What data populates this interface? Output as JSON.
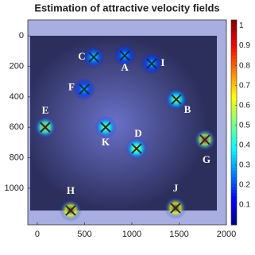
{
  "chart_data": {
    "type": "heatmap",
    "title": "Estimation of attractive velocity fields",
    "xlim": [
      -100,
      2000
    ],
    "ylim": [
      -105,
      1240
    ],
    "y_reversed": true,
    "xticks": [
      0,
      500,
      1000,
      1500,
      2000
    ],
    "yticks": [
      0,
      200,
      400,
      600,
      800,
      1000
    ],
    "colormap": "jet",
    "clim": [
      0,
      1.03
    ],
    "cticks": [
      0.1,
      0.2,
      0.3,
      0.4,
      0.5,
      0.6,
      0.7,
      0.8,
      0.9,
      1
    ],
    "points": [
      {
        "label": "A",
        "x": 925,
        "y": 130,
        "value": 0.35
      },
      {
        "label": "B",
        "x": 1470,
        "y": 417,
        "value": 0.6
      },
      {
        "label": "C",
        "x": 597,
        "y": 140,
        "value": 0.4
      },
      {
        "label": "D",
        "x": 1050,
        "y": 740,
        "value": 0.65
      },
      {
        "label": "E",
        "x": 84,
        "y": 600,
        "value": 0.75
      },
      {
        "label": "F",
        "x": 496,
        "y": 350,
        "value": 0.35
      },
      {
        "label": "G",
        "x": 1773,
        "y": 682,
        "value": 0.9
      },
      {
        "label": "H",
        "x": 353,
        "y": 1146,
        "value": 1
      },
      {
        "label": "I",
        "x": 1210,
        "y": 182,
        "value": 0.35
      },
      {
        "label": "J",
        "x": 1462,
        "y": 1130,
        "value": 1
      },
      {
        "label": "K",
        "x": 723,
        "y": 600,
        "value": 0.6
      }
    ]
  }
}
